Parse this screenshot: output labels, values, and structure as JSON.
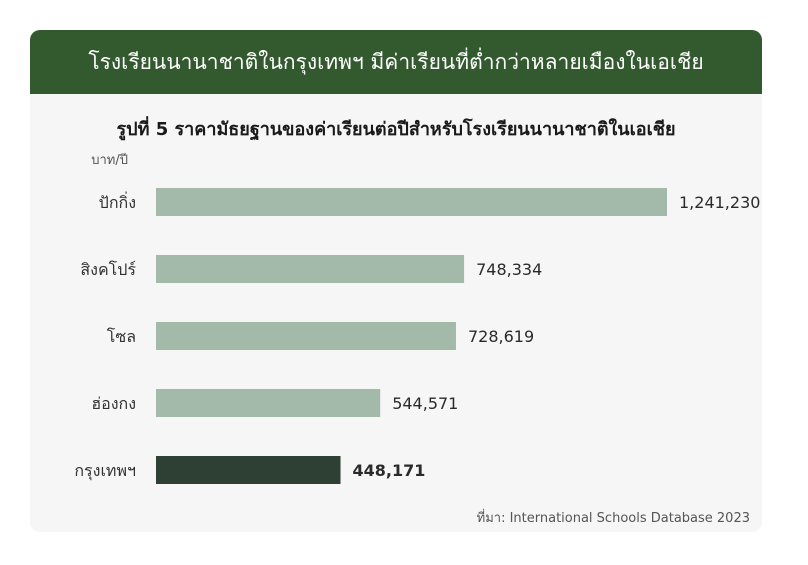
{
  "banner_title": "โรงเรียนนานาชาติในกรุงเทพฯ มีค่าเรียนที่ต่ำกว่าหลายเมืองในเอเชีย",
  "source": "ที่มา: International Schools Database 2023",
  "colors": {
    "banner": "#33592f",
    "bar": "#a3b9aa",
    "bar_highlight": "#2e3f33"
  },
  "chart_data": {
    "type": "bar",
    "orientation": "horizontal",
    "title": "รูปที่ 5 ราคามัธยฐานของค่าเรียนต่อปีสำหรับโรงเรียนนานาชาติในเอเชีย",
    "unit_label": "บาท/ปี",
    "categories": [
      "ปักกิ่ง",
      "สิงคโปร์",
      "โซล",
      "ฮ่องกง",
      "กรุงเทพฯ"
    ],
    "values": [
      1241230,
      748334,
      728619,
      544571,
      448171
    ],
    "value_labels": [
      "1,241,230",
      "748,334",
      "728,619",
      "544,571",
      "448,171"
    ],
    "highlight": "กรุงเทพฯ",
    "xlim": [
      0,
      1241230
    ],
    "grid": false,
    "legend": "none"
  }
}
